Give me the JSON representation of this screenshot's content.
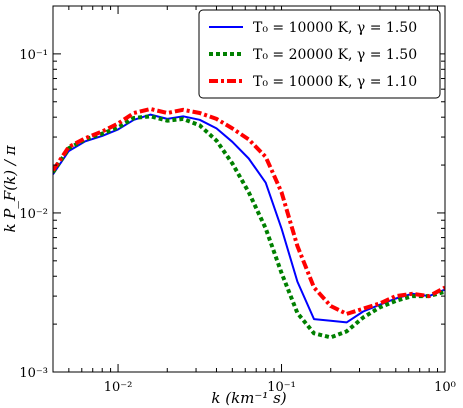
{
  "chart_data": {
    "type": "line",
    "xlabel": "k (km⁻¹ s)",
    "ylabel": "k P_F(k) / π",
    "xscale": "log",
    "yscale": "log",
    "xlim": [
      0.004,
      1.0
    ],
    "ylim": [
      0.001,
      0.2
    ],
    "grid": false,
    "legend_position": "top-right",
    "x_ticks": [
      {
        "value": 0.01,
        "label": "10⁻²"
      },
      {
        "value": 0.1,
        "label": "10⁻¹"
      },
      {
        "value": 1.0,
        "label": "10⁰"
      }
    ],
    "y_ticks": [
      {
        "value": 0.001,
        "label": "10⁻³"
      },
      {
        "value": 0.01,
        "label": "10⁻²"
      },
      {
        "value": 0.1,
        "label": "10⁻¹"
      }
    ],
    "series": [
      {
        "name": "T₀ = 10000 K,  γ = 1.50",
        "color": "#0000ff",
        "style": "solid",
        "x": [
          0.004,
          0.005,
          0.0063,
          0.008,
          0.01,
          0.0125,
          0.0158,
          0.02,
          0.025,
          0.0316,
          0.04,
          0.05,
          0.063,
          0.08,
          0.1,
          0.125,
          0.158,
          0.2,
          0.25,
          0.316,
          0.4,
          0.5,
          0.63,
          0.8,
          1.0
        ],
        "y": [
          0.0175,
          0.0245,
          0.0282,
          0.0305,
          0.0335,
          0.0385,
          0.0415,
          0.039,
          0.0405,
          0.0385,
          0.034,
          0.028,
          0.022,
          0.0155,
          0.008,
          0.0037,
          0.00215,
          0.0021,
          0.00205,
          0.0024,
          0.00265,
          0.0029,
          0.0031,
          0.003,
          0.0033
        ]
      },
      {
        "name": "T₀ = 20000 K,  γ = 1.50",
        "color": "#008000",
        "style": "dotted",
        "x": [
          0.004,
          0.005,
          0.0063,
          0.008,
          0.01,
          0.0125,
          0.0158,
          0.02,
          0.025,
          0.0316,
          0.04,
          0.05,
          0.063,
          0.08,
          0.1,
          0.125,
          0.158,
          0.2,
          0.25,
          0.316,
          0.4,
          0.5,
          0.63,
          0.8,
          1.0
        ],
        "y": [
          0.018,
          0.0255,
          0.029,
          0.0315,
          0.0345,
          0.0395,
          0.0405,
          0.038,
          0.039,
          0.0355,
          0.0285,
          0.0205,
          0.0135,
          0.008,
          0.0042,
          0.00235,
          0.00175,
          0.00165,
          0.0018,
          0.0022,
          0.00255,
          0.0028,
          0.003,
          0.003,
          0.0032
        ]
      },
      {
        "name": "T₀ = 10000 K,  γ = 1.10",
        "color": "#ff0000",
        "style": "dashdot",
        "x": [
          0.004,
          0.005,
          0.0063,
          0.008,
          0.01,
          0.0125,
          0.0158,
          0.02,
          0.025,
          0.0316,
          0.04,
          0.05,
          0.063,
          0.08,
          0.1,
          0.125,
          0.158,
          0.2,
          0.25,
          0.316,
          0.4,
          0.5,
          0.63,
          0.8,
          1.0
        ],
        "y": [
          0.0185,
          0.026,
          0.0295,
          0.0325,
          0.0365,
          0.0425,
          0.045,
          0.0425,
          0.0445,
          0.0425,
          0.039,
          0.034,
          0.029,
          0.0225,
          0.0135,
          0.0062,
          0.0034,
          0.0026,
          0.00232,
          0.0025,
          0.0027,
          0.003,
          0.0031,
          0.003,
          0.0034
        ]
      }
    ]
  }
}
